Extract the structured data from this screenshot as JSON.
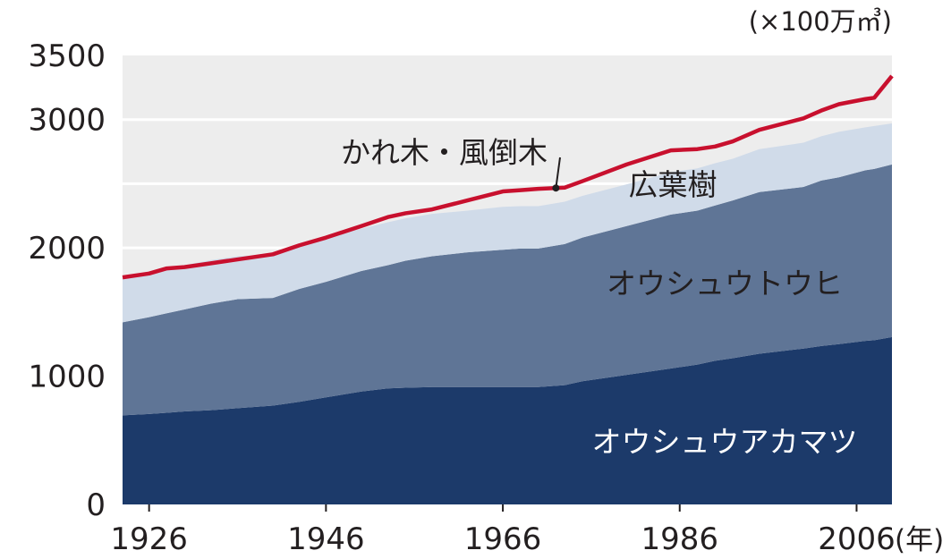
{
  "chart_data": {
    "type": "area",
    "stacked": true,
    "unit": "(×100万㎥)",
    "x_unit": "(年)",
    "xlim": [
      1923,
      2010
    ],
    "ylim": [
      0,
      3500
    ],
    "yticks": [
      0,
      1000,
      2000,
      3000,
      3500
    ],
    "xticks": [
      1926,
      1946,
      1966,
      1986,
      2006
    ],
    "grid": true,
    "x": [
      1923,
      1926,
      1928,
      1930,
      1933,
      1936,
      1940,
      1943,
      1946,
      1950,
      1953,
      1955,
      1958,
      1962,
      1966,
      1968,
      1970,
      1973,
      1975,
      1980,
      1985,
      1988,
      1990,
      1992,
      1995,
      2000,
      2002,
      2004,
      2007,
      2008,
      2010
    ],
    "series": [
      {
        "name": "オウシュウアカマツ",
        "color": "#1c3a6a",
        "values": [
          695,
          705,
          715,
          725,
          735,
          750,
          770,
          800,
          835,
          880,
          905,
          910,
          915,
          915,
          915,
          915,
          915,
          930,
          960,
          1010,
          1060,
          1090,
          1120,
          1140,
          1175,
          1215,
          1235,
          1250,
          1275,
          1280,
          1305
        ]
      },
      {
        "name": "オウシュウトウヒ",
        "color": "#5f7596",
        "values": [
          725,
          755,
          775,
          795,
          830,
          850,
          840,
          880,
          900,
          940,
          960,
          990,
          1020,
          1050,
          1070,
          1080,
          1080,
          1100,
          1120,
          1160,
          1200,
          1200,
          1210,
          1230,
          1260,
          1260,
          1290,
          1300,
          1330,
          1335,
          1345
        ]
      },
      {
        "name": "広葉樹",
        "color": "#d0dbe9",
        "values": [
          340,
          340,
          345,
          345,
          340,
          335,
          340,
          350,
          340,
          330,
          335,
          330,
          330,
          325,
          335,
          330,
          330,
          330,
          325,
          325,
          330,
          330,
          330,
          325,
          335,
          345,
          345,
          355,
          335,
          335,
          320
        ]
      },
      {
        "name": "かれ木・風倒木",
        "color": "#c8102e",
        "type": "line",
        "values": [
          1770,
          1800,
          1840,
          1850,
          1880,
          1910,
          1950,
          2020,
          2080,
          2170,
          2240,
          2270,
          2300,
          2370,
          2440,
          2450,
          2460,
          2470,
          2520,
          2650,
          2760,
          2770,
          2790,
          2830,
          2920,
          3010,
          3070,
          3120,
          3160,
          3170,
          3340
        ]
      }
    ],
    "legend": "inline",
    "annotations": [
      {
        "text": "かれ木・風倒木",
        "target_series": 3,
        "target_x": 1972
      },
      {
        "text": "広葉樹",
        "target_series": 2
      },
      {
        "text": "オウシュウトウヒ",
        "target_series": 1
      },
      {
        "text": "オウシュウアカマツ",
        "target_series": 0
      }
    ],
    "colors": {
      "plot_bg": "#ededed",
      "grid": "#ffffff",
      "text": "#231f20",
      "inner_label": "#ffffff"
    }
  }
}
